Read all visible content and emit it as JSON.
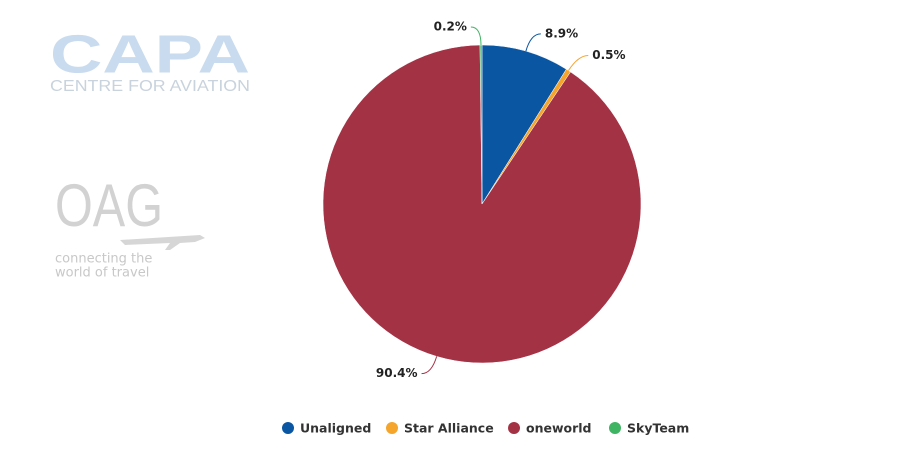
{
  "logos": {
    "capa": {
      "name": "CAPA",
      "tagline": "CENTRE FOR AVIATION"
    },
    "oag": {
      "name": "OAG",
      "tagline": [
        "connecting the",
        "world of travel"
      ]
    }
  },
  "chart_data": {
    "type": "pie",
    "categories": [
      "Unaligned",
      "Star Alliance",
      "oneworld",
      "SkyTeam"
    ],
    "values": [
      8.9,
      0.5,
      90.4,
      0.2
    ],
    "value_labels": [
      "8.9%",
      "0.5%",
      "90.4%",
      "0.2%"
    ],
    "colors": [
      "#0b56a3",
      "#f5a52c",
      "#a43245",
      "#3fb463"
    ],
    "legend": "bottom"
  }
}
